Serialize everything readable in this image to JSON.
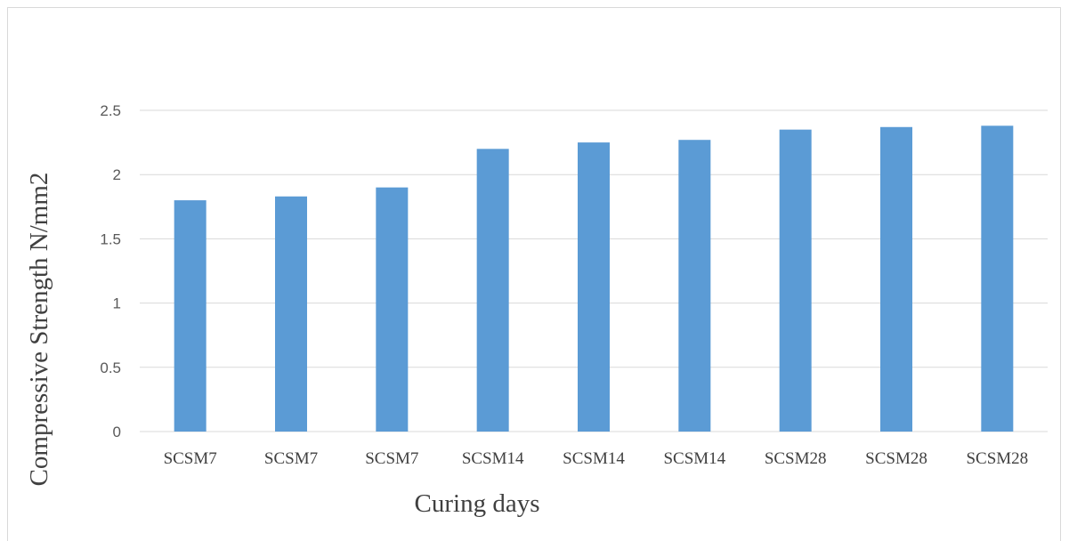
{
  "chart_data": {
    "type": "bar",
    "title": "",
    "xlabel": "Curing days",
    "ylabel": "Compressive Strength N/mm2",
    "categories": [
      "SCSM7",
      "SCSM7",
      "SCSM7",
      "SCSM14",
      "SCSM14",
      "SCSM14",
      "SCSM28",
      "SCSM28",
      "SCSM28"
    ],
    "values": [
      1.8,
      1.83,
      1.9,
      2.2,
      2.25,
      2.27,
      2.35,
      2.37,
      2.38
    ],
    "ylim": [
      0,
      2.5
    ],
    "yticks": [
      "0",
      "0.5",
      "1",
      "1.5",
      "2",
      "2.5"
    ],
    "grid": true,
    "legend": "none",
    "bar_color": "#5b9bd5",
    "grid_color": "#d9d9d9"
  }
}
